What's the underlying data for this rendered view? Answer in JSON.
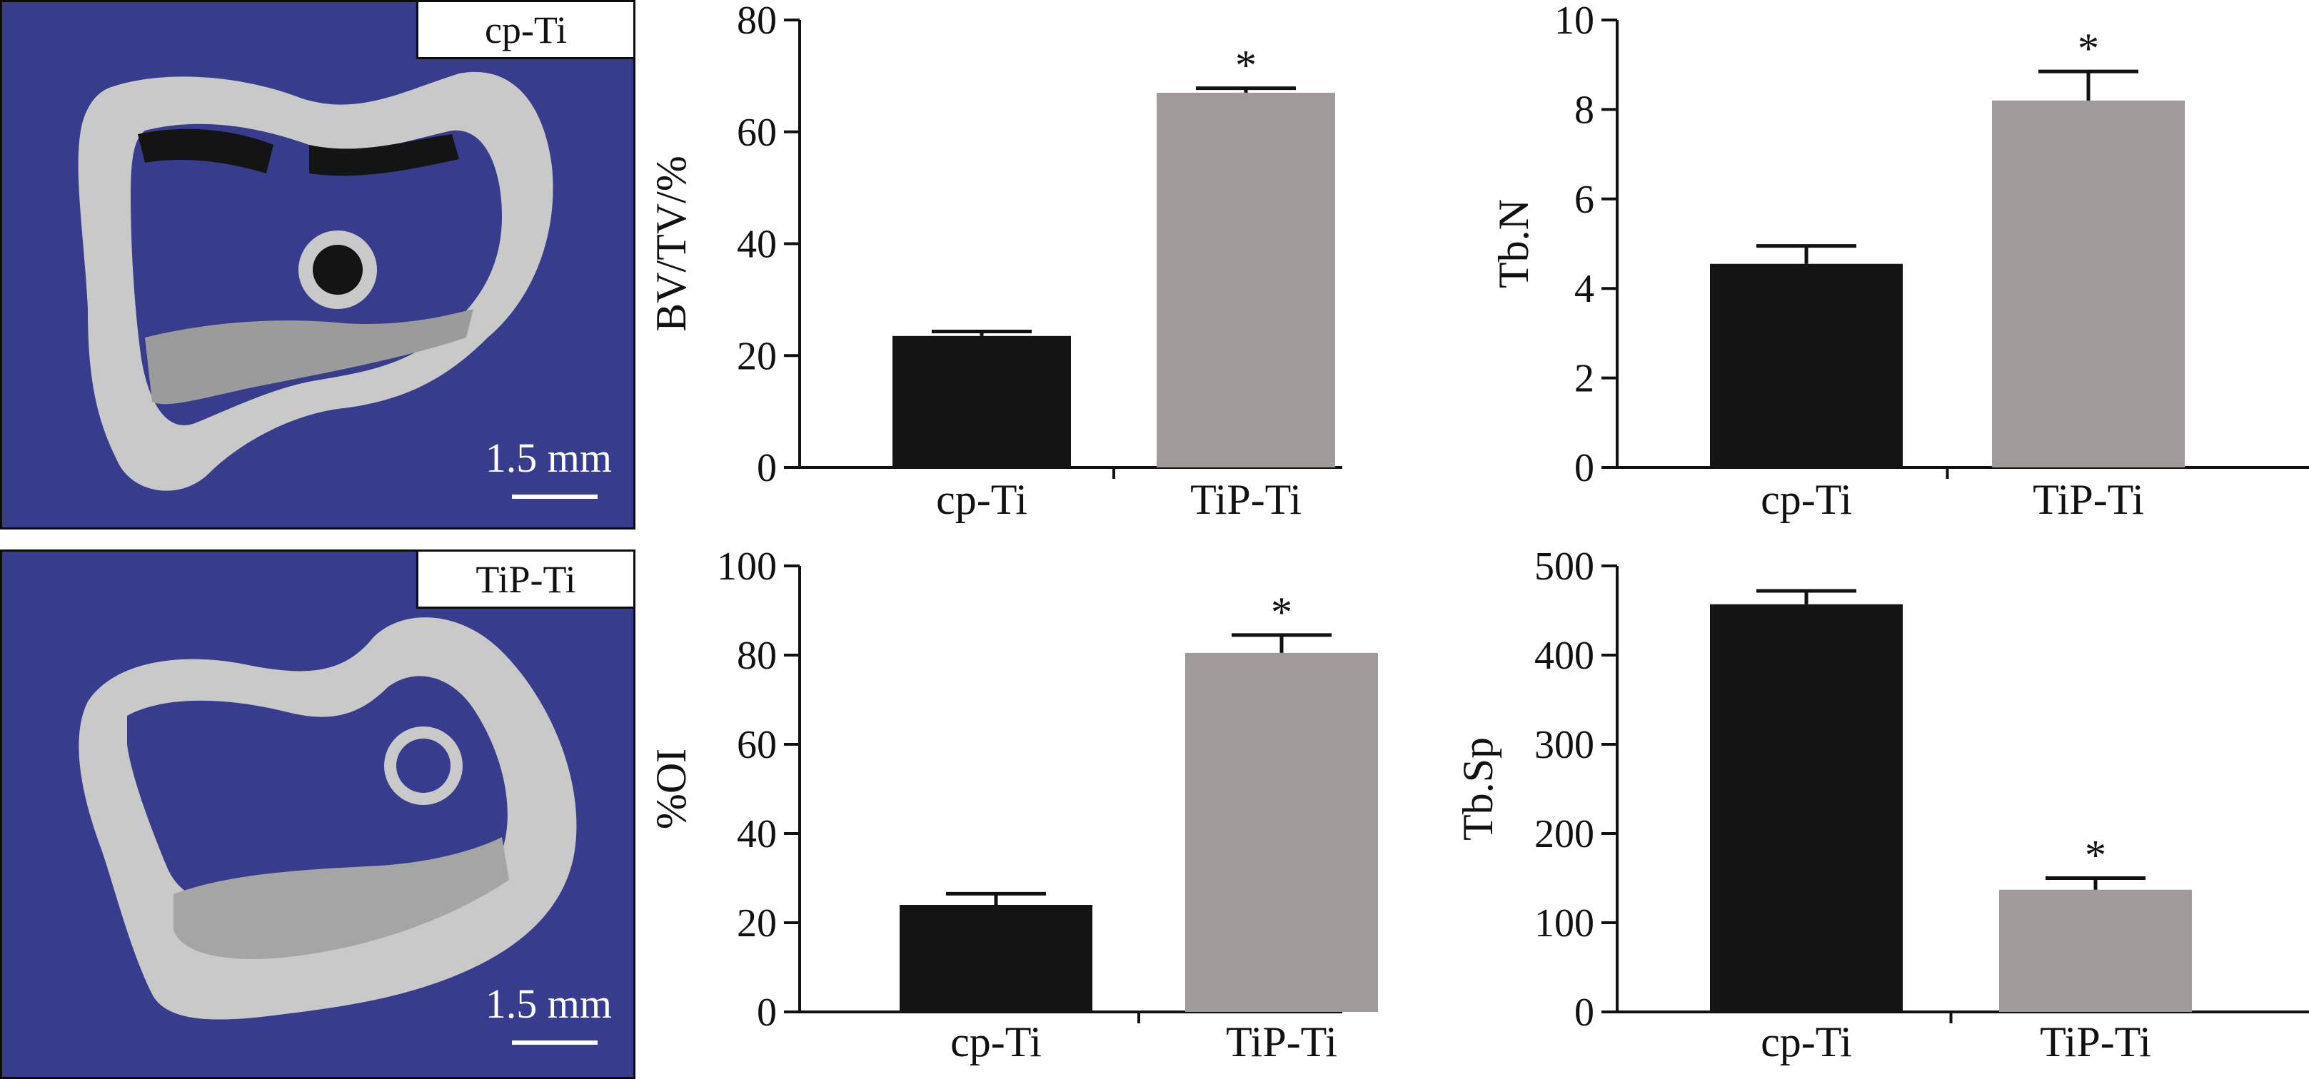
{
  "images": [
    {
      "label": "cp-Ti",
      "scale": "1.5 mm"
    },
    {
      "label": "TiP-Ti",
      "scale": "1.5 mm"
    }
  ],
  "colors": {
    "panel_bg": "#373c8c",
    "bone": "#c9c9c9",
    "bar_cp": "#141414",
    "bar_tip": "#a09a9b"
  },
  "chart_data": [
    {
      "type": "bar",
      "categories": [
        "cp-Ti",
        "TiP-Ti"
      ],
      "values": [
        23.5,
        67.0
      ],
      "errors": [
        0.8,
        0.8
      ],
      "significance": [
        "",
        "*"
      ],
      "ylabel": "BV/TV/%",
      "ylim": [
        0,
        80
      ],
      "yticks": [
        0,
        20,
        40,
        60,
        80
      ],
      "colors": [
        "#141414",
        "#a09a9b"
      ]
    },
    {
      "type": "bar",
      "categories": [
        "cp-Ti",
        "TiP-Ti"
      ],
      "values": [
        4.55,
        8.2
      ],
      "errors": [
        0.4,
        0.65
      ],
      "significance": [
        "",
        "*"
      ],
      "ylabel": "Tb.N",
      "ylim": [
        0,
        10
      ],
      "yticks": [
        0,
        2,
        4,
        6,
        8,
        10
      ],
      "colors": [
        "#141414",
        "#a09a9b"
      ]
    },
    {
      "type": "bar",
      "categories": [
        "cp-Ti",
        "TiP-Ti"
      ],
      "values": [
        24.0,
        80.5
      ],
      "errors": [
        2.5,
        4.0
      ],
      "significance": [
        "",
        "*"
      ],
      "ylabel": "%OI",
      "ylim": [
        0,
        100
      ],
      "yticks": [
        0,
        20,
        40,
        60,
        80,
        100
      ],
      "colors": [
        "#141414",
        "#a09a9b"
      ]
    },
    {
      "type": "bar",
      "categories": [
        "cp-Ti",
        "TiP-Ti"
      ],
      "values": [
        457,
        137
      ],
      "errors": [
        15,
        13
      ],
      "significance": [
        "",
        "*"
      ],
      "ylabel": "Tb.Sp",
      "ylim": [
        0,
        500
      ],
      "yticks": [
        0,
        100,
        200,
        300,
        400,
        500
      ],
      "colors": [
        "#141414",
        "#a09a9b"
      ]
    }
  ]
}
